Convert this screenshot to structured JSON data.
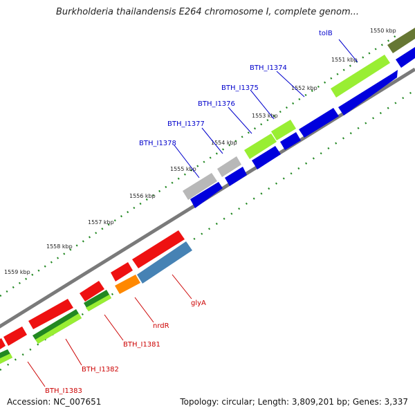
{
  "title": "Burkholderia thailandensis E264 chromosome I, complete genom...",
  "footer": {
    "accession": "Accession: NC_007651",
    "topology": "Topology: circular; Length: 3,809,201 bp; Genes: 3,337"
  },
  "ticks": [
    "1550 kbp",
    "1551 kbp",
    "1552 kbp",
    "1553 kbp",
    "1554 kbp",
    "1555 kbp",
    "1556 kbp",
    "1557 kbp",
    "1558 kbp",
    "1559 kbp"
  ],
  "upper_labels": [
    "tolB",
    "BTH_I1374",
    "BTH_I1375",
    "BTH_I1376",
    "BTH_I1377",
    "BTH_I1378"
  ],
  "lower_labels": [
    "glyA",
    "nrdR",
    "BTH_I1381",
    "BTH_I1382",
    "BTH_I1383"
  ],
  "colors": {
    "blue": "#0000dd",
    "lime": "#99ee33",
    "gray": "#b8b8b8",
    "red": "#ee1111",
    "darkgreen": "#228822",
    "orange": "#ff8800",
    "steelblue": "#4682b4",
    "olive": "#667733",
    "tick": "#228822",
    "label_blue": "#0000cc",
    "label_red": "#cc0000"
  }
}
